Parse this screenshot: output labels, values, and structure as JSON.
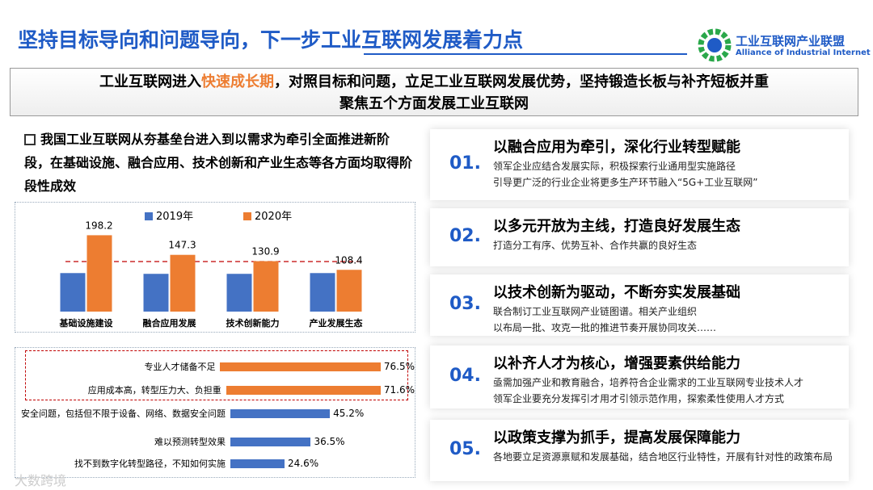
{
  "header": {
    "title": "坚持目标导向和问题导向，下一步工业互联网发展着力点",
    "logo_cn": "工业互联网产业联盟",
    "logo_en": "Alliance of Industrial Internet"
  },
  "banner": {
    "before": "工业互联网进入",
    "highlight": "快速成长期",
    "after": "，对照目标和问题，立足工业互联网发展优势，坚持锻造长板与补齐短板并重",
    "line2": "聚焦五个方面发展工业互联网"
  },
  "summary": "我国工业互联网从夯基垒台进入到以需求为牵引全面推进新阶段，在基础设施、融合应用、技术创新和产业生态等各方面均取得阶段性成效",
  "chart_data": [
    {
      "type": "bar",
      "categories": [
        "基础设施建设",
        "融合应用发展",
        "技术创新能力",
        "产业发展生态"
      ],
      "series": [
        {
          "name": "2019年",
          "color": "#4472c4",
          "values": [
            100,
            98,
            98,
            100
          ]
        },
        {
          "name": "2020年",
          "color": "#ed7d31",
          "values": [
            198.2,
            147.3,
            130.9,
            108.4
          ]
        }
      ],
      "ylim": [
        0,
        220
      ]
    },
    {
      "type": "hbar",
      "categories": [
        "专业人才储备不足",
        "应用成本高，转型压力大、负担重",
        "安全问题，包括但不限于设备、网络、数据安全问题",
        "难以预测转型效果",
        "找不到数字化转型路径，不知如何实施"
      ],
      "values": [
        76.5,
        71.6,
        45.2,
        36.5,
        24.6
      ],
      "value_labels": [
        "76.5%",
        "71.6%",
        "45.2%",
        "36.5%",
        "24.6%"
      ],
      "colors": [
        "#ed7d31",
        "#ed7d31",
        "#4472c4",
        "#4472c4",
        "#4472c4"
      ],
      "xlim": [
        0,
        80
      ]
    }
  ],
  "items": [
    {
      "number": "01.",
      "title": "以融合应用为牵引，深化行业转型赋能",
      "lines": [
        "领军企业应结合发展实际，积极探索行业通用型实施路径",
        "引导更广泛的行业企业将更多生产环节融入“5G+工业互联网”"
      ]
    },
    {
      "number": "02.",
      "title": "以多元开放为主线，打造良好发展生态",
      "lines": [
        "打造分工有序、优势互补、合作共赢的良好生态"
      ]
    },
    {
      "number": "03.",
      "title": "以技术创新为驱动，不断夯实发展基础",
      "lines": [
        "联合制订工业互联网产业链图谱。相关产业组织",
        "以布局一批、攻克一批的推进节奏开展协同攻关……"
      ]
    },
    {
      "number": "04.",
      "title": "以补齐人才为核心，增强要素供给能力",
      "lines": [
        "亟需加强产业和教育融合，培养符合企业需求的工业互联网专业技术人才",
        "领军企业要充分发挥引才用才引领示范作用，探索柔性使用人才方式"
      ]
    },
    {
      "number": "05.",
      "title": "以政策支撑为抓手，提高发展保障能力",
      "lines": [
        "各地要立足资源禀赋和发展基础，结合地区行业特性，开展有针对性的政策布局"
      ]
    }
  ],
  "footer_mark": "大数跨境"
}
